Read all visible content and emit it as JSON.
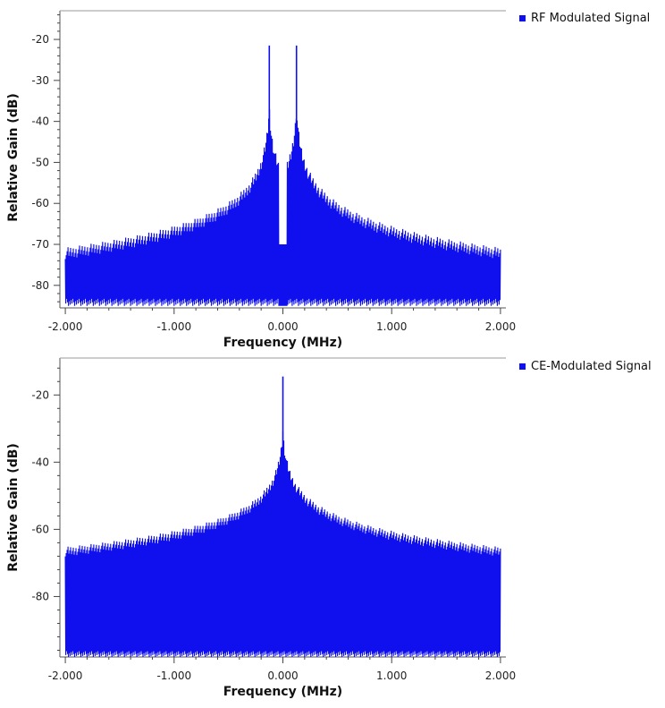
{
  "chart_data": [
    {
      "type": "line",
      "xlabel": "Frequency (MHz)",
      "ylabel": "Relative Gain (dB)",
      "xlim": [
        -2.05,
        2.05
      ],
      "ylim": [
        -85.5,
        -13
      ],
      "x_ticks": [
        -2.0,
        -1.0,
        0.0,
        1.0,
        2.0
      ],
      "x_tick_labels": [
        "-2.000",
        "-1.000",
        "0.000",
        "1.000",
        "2.000"
      ],
      "y_ticks": [
        -80,
        -70,
        -60,
        -50,
        -40,
        -30,
        -20
      ],
      "y_tick_labels": [
        "-80",
        "-70",
        "-60",
        "-50",
        "-40",
        "-30",
        "-20"
      ],
      "grid": false,
      "legend_position": "top-right",
      "series": [
        {
          "name": "RF Modulated Signal",
          "color": "#1010ee",
          "peaks": [
            {
              "x": -0.125,
              "y": -21.5
            },
            {
              "x": 0.125,
              "y": -21.5
            }
          ],
          "lobe_peak_dB": -38,
          "noise_floor_dB": -74,
          "trough_dB": -85
        }
      ]
    },
    {
      "type": "line",
      "xlabel": "Frequency (MHz)",
      "ylabel": "Relative Gain (dB)",
      "xlim": [
        -2.05,
        2.05
      ],
      "ylim": [
        -98,
        -9
      ],
      "x_ticks": [
        -2.0,
        -1.0,
        0.0,
        1.0,
        2.0
      ],
      "x_tick_labels": [
        "-2.000",
        "-1.000",
        "0.000",
        "1.000",
        "2.000"
      ],
      "y_ticks": [
        -80,
        -60,
        -40,
        -20
      ],
      "y_tick_labels": [
        "-80",
        "-60",
        "-40",
        "-20"
      ],
      "grid": false,
      "legend_position": "top-right",
      "series": [
        {
          "name": "CE-Modulated Signal",
          "color": "#1010ee",
          "peaks": [
            {
              "x": 0.0,
              "y": -14.5
            }
          ],
          "lobe_peak_dB": -32,
          "noise_floor_dB": -72.5,
          "trough_dB": -98
        }
      ]
    }
  ]
}
